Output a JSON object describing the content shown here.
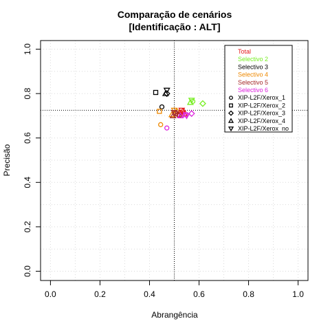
{
  "chart_data": {
    "type": "scatter",
    "title_line1": "Comparação de cenários",
    "title_line2": "[Identificação : ALT]",
    "xlabel": "Abrangência",
    "ylabel": "Precisão",
    "xlim": [
      0,
      1
    ],
    "ylim": [
      0,
      1
    ],
    "x_ticks": [
      "0.0",
      "0.2",
      "0.4",
      "0.6",
      "0.8",
      "1.0"
    ],
    "y_ticks": [
      "0.0",
      "0.2",
      "0.4",
      "0.6",
      "0.8",
      "1.0"
    ],
    "grid": true,
    "reference_lines": {
      "x": 0.5,
      "y": 0.725
    },
    "legend_position": "top-right",
    "scenarios": [
      {
        "name": "Total",
        "color": "#e41a1c"
      },
      {
        "name": "Selectivo 2",
        "color": "#77ee22"
      },
      {
        "name": "Selectivo 3",
        "color": "#000000"
      },
      {
        "name": "Selectivo 4",
        "color": "#ee8800"
      },
      {
        "name": "Selectivo 5",
        "color": "#a52a2a"
      },
      {
        "name": "Selectivo 6",
        "color": "#dd22dd"
      }
    ],
    "systems": [
      {
        "name": "XIP-L2F/Xerox_1",
        "marker": "circle"
      },
      {
        "name": "XIP-L2F/Xerox_2",
        "marker": "square"
      },
      {
        "name": "XIP-L2F/Xerox_3",
        "marker": "diamond"
      },
      {
        "name": "XIP-L2F/Xerox_4",
        "marker": "triangle-up"
      },
      {
        "name": "XIP-L2F/Xerox_no",
        "marker": "triangle-down"
      }
    ],
    "points": [
      {
        "scenario": 2,
        "system": 0,
        "x": 0.45,
        "y": 0.74
      },
      {
        "scenario": 2,
        "system": 1,
        "x": 0.425,
        "y": 0.805
      },
      {
        "scenario": 2,
        "system": 2,
        "x": 0.47,
        "y": 0.8
      },
      {
        "scenario": 2,
        "system": 3,
        "x": 0.465,
        "y": 0.8
      },
      {
        "scenario": 2,
        "system": 4,
        "x": 0.47,
        "y": 0.815
      },
      {
        "scenario": 1,
        "system": 0,
        "x": 0.575,
        "y": 0.765
      },
      {
        "scenario": 1,
        "system": 2,
        "x": 0.615,
        "y": 0.755
      },
      {
        "scenario": 1,
        "system": 3,
        "x": 0.565,
        "y": 0.76
      },
      {
        "scenario": 1,
        "system": 4,
        "x": 0.57,
        "y": 0.77
      },
      {
        "scenario": 3,
        "system": 0,
        "x": 0.445,
        "y": 0.66
      },
      {
        "scenario": 3,
        "system": 1,
        "x": 0.44,
        "y": 0.72
      },
      {
        "scenario": 3,
        "system": 2,
        "x": 0.51,
        "y": 0.72
      },
      {
        "scenario": 3,
        "system": 3,
        "x": 0.49,
        "y": 0.705
      },
      {
        "scenario": 3,
        "system": 4,
        "x": 0.5,
        "y": 0.725
      },
      {
        "scenario": 0,
        "system": 0,
        "x": 0.525,
        "y": 0.715
      },
      {
        "scenario": 0,
        "system": 1,
        "x": 0.52,
        "y": 0.705
      },
      {
        "scenario": 0,
        "system": 2,
        "x": 0.535,
        "y": 0.72
      },
      {
        "scenario": 0,
        "system": 3,
        "x": 0.54,
        "y": 0.71
      },
      {
        "scenario": 0,
        "system": 4,
        "x": 0.53,
        "y": 0.725
      },
      {
        "scenario": 4,
        "system": 0,
        "x": 0.52,
        "y": 0.7
      },
      {
        "scenario": 4,
        "system": 1,
        "x": 0.505,
        "y": 0.71
      },
      {
        "scenario": 4,
        "system": 2,
        "x": 0.515,
        "y": 0.705
      },
      {
        "scenario": 4,
        "system": 3,
        "x": 0.495,
        "y": 0.7
      },
      {
        "scenario": 4,
        "system": 4,
        "x": 0.5,
        "y": 0.715
      },
      {
        "scenario": 5,
        "system": 0,
        "x": 0.47,
        "y": 0.645
      },
      {
        "scenario": 5,
        "system": 1,
        "x": 0.545,
        "y": 0.705
      },
      {
        "scenario": 5,
        "system": 2,
        "x": 0.57,
        "y": 0.71
      },
      {
        "scenario": 5,
        "system": 3,
        "x": 0.525,
        "y": 0.7
      },
      {
        "scenario": 5,
        "system": 4,
        "x": 0.55,
        "y": 0.7
      }
    ]
  }
}
